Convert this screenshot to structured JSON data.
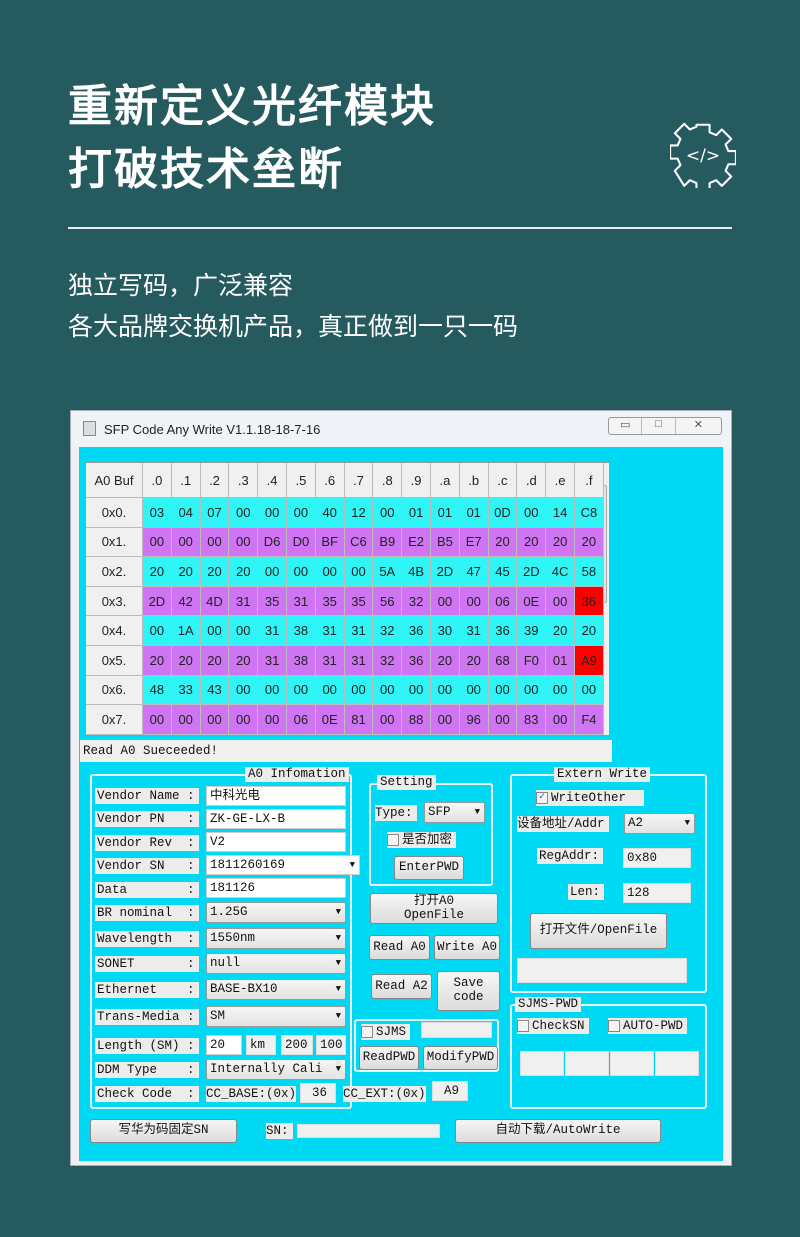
{
  "headline": {
    "line1": "重新定义光纤模块",
    "line2": "打破技术垒断"
  },
  "subtitle": {
    "line1": "独立写码，广泛兼容",
    "line2": "各大品牌交换机产品，真正做到一只一码"
  },
  "icons": {
    "badge": "gear-code-icon"
  },
  "colors": {
    "background": "#255a5f",
    "app_body": "#00d9f4",
    "row_even": "#2ff5f7",
    "row_odd": "#cf74f2",
    "checksum": "#ff0000"
  },
  "window": {
    "title": "SFP Code Any Write V1.1.18-18-7-16"
  },
  "hex_table": {
    "corner": "A0 Buf",
    "columns": [
      ".0",
      ".1",
      ".2",
      ".3",
      ".4",
      ".5",
      ".6",
      ".7",
      ".8",
      ".9",
      ".a",
      ".b",
      ".c",
      ".d",
      ".e",
      ".f"
    ],
    "rows": [
      {
        "label": "0x0.",
        "cells": [
          "03",
          "04",
          "07",
          "00",
          "00",
          "00",
          "40",
          "12",
          "00",
          "01",
          "01",
          "01",
          "0D",
          "00",
          "14",
          "C8"
        ]
      },
      {
        "label": "0x1.",
        "cells": [
          "00",
          "00",
          "00",
          "00",
          "D6",
          "D0",
          "BF",
          "C6",
          "B9",
          "E2",
          "B5",
          "E7",
          "20",
          "20",
          "20",
          "20"
        ]
      },
      {
        "label": "0x2.",
        "cells": [
          "20",
          "20",
          "20",
          "20",
          "00",
          "00",
          "00",
          "00",
          "5A",
          "4B",
          "2D",
          "47",
          "45",
          "2D",
          "4C",
          "58"
        ]
      },
      {
        "label": "0x3.",
        "cells": [
          "2D",
          "42",
          "4D",
          "31",
          "35",
          "31",
          "35",
          "35",
          "56",
          "32",
          "00",
          "00",
          "06",
          "0E",
          "00",
          "36"
        ]
      },
      {
        "label": "0x4.",
        "cells": [
          "00",
          "1A",
          "00",
          "00",
          "31",
          "38",
          "31",
          "31",
          "32",
          "36",
          "30",
          "31",
          "36",
          "39",
          "20",
          "20"
        ]
      },
      {
        "label": "0x5.",
        "cells": [
          "20",
          "20",
          "20",
          "20",
          "31",
          "38",
          "31",
          "31",
          "32",
          "36",
          "20",
          "20",
          "68",
          "F0",
          "01",
          "A9"
        ]
      },
      {
        "label": "0x6.",
        "cells": [
          "48",
          "33",
          "43",
          "00",
          "00",
          "00",
          "00",
          "00",
          "00",
          "00",
          "00",
          "00",
          "00",
          "00",
          "00",
          "00"
        ]
      },
      {
        "label": "0x7.",
        "cells": [
          "00",
          "00",
          "00",
          "00",
          "00",
          "06",
          "0E",
          "81",
          "00",
          "88",
          "00",
          "96",
          "00",
          "83",
          "00",
          "F4"
        ]
      }
    ]
  },
  "status": "Read A0 Sueceeded!",
  "a0_info": {
    "title": "A0 Infomation",
    "labels": [
      "Vendor Name :",
      "Vendor PN   :",
      "Vendor Rev  :",
      "Vendor SN   :",
      "Data        :",
      "BR nominal  :",
      "Wavelength  :",
      "SONET       :",
      "Ethernet    :",
      "Trans-Media :",
      "Length (SM) :",
      "DDM Type    :",
      "Check Code  :"
    ],
    "vendor_name": "中科光电",
    "vendor_pn": "ZK-GE-LX-B",
    "vendor_rev": "V2",
    "vendor_sn": "1811260169",
    "data": "181126",
    "br_nominal": "1.25G",
    "wavelength": "1550nm",
    "sonet": "null",
    "ethernet": "BASE-BX10",
    "trans_media": "SM",
    "length_km": "20",
    "length_unit": "km",
    "length_2": "200",
    "length_3": "100:",
    "ddm_type": "Internally Cali",
    "cc_base_label": "CC_BASE:(0x)",
    "cc_base": "36",
    "cc_ext_label": "CC_EXT:(0x)",
    "cc_ext": "A9"
  },
  "setting": {
    "title": "Setting",
    "type_label": "Type:",
    "type": "SFP",
    "encrypt_label": "是否加密",
    "encrypt_checked": false,
    "enter_pwd": "EnterPWD"
  },
  "buttons": {
    "open_a0_line1": "打开A0",
    "open_a0_line2": "OpenFile",
    "read_a0": "Read A0",
    "write_a0": "Write A0",
    "read_a2": "Read A2",
    "save_code_line1": "Save",
    "save_code_line2": "code",
    "read_pwd": "ReadPWD",
    "modify_pwd": "ModifyPWD",
    "write_huawei": "写华为码固定SN",
    "auto_write": "自动下载/AutoWrite"
  },
  "sjms": {
    "label": "SJMS",
    "checked": false
  },
  "extern_write": {
    "title": "Extern Write",
    "write_other": "WriteOther",
    "write_other_checked": true,
    "addr_label": "设备地址/Addr",
    "addr": "A2",
    "reg_label": "RegAddr:",
    "reg": "0x80",
    "len_label": "Len:",
    "len": "128",
    "open_file": "打开文件/OpenFile"
  },
  "sjms_pwd": {
    "title": "SJMS-PWD",
    "check_sn": "CheckSN",
    "auto_pwd": "AUTO-PWD"
  },
  "sn_label": "SN:"
}
